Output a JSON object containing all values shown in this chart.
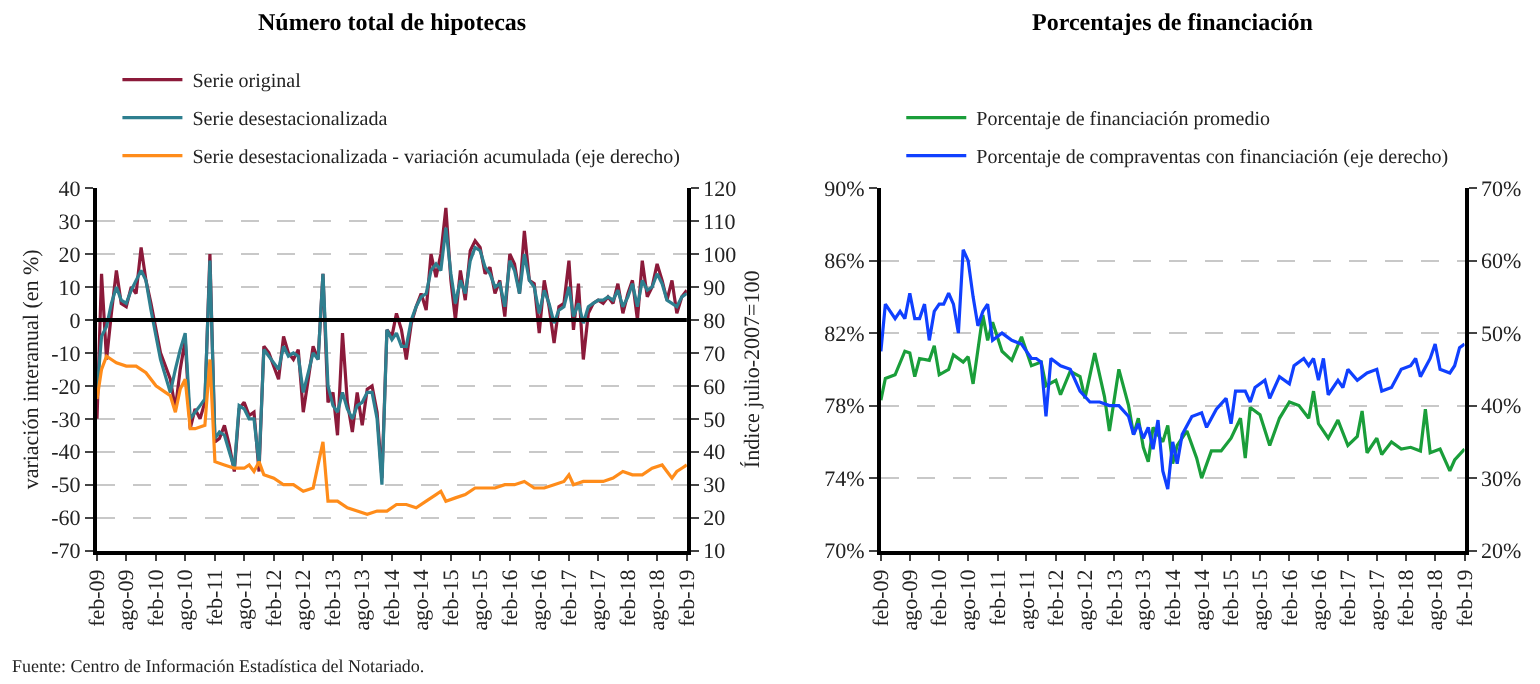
{
  "chart_data": [
    {
      "type": "line",
      "title": "Número total de hipotecas",
      "ylabel": "variación interanual (en %)",
      "y2label": "Índice julio-2007=100",
      "xlim": [
        "2009-02",
        "2019-02"
      ],
      "xticks": [
        {
          "value": "2009-02",
          "label": "feb-09"
        },
        {
          "value": "2009-08",
          "label": "ago-09"
        },
        {
          "value": "2010-02",
          "label": "feb-10"
        },
        {
          "value": "2010-08",
          "label": "ago-10"
        },
        {
          "value": "2011-02",
          "label": "feb-11"
        },
        {
          "value": "2011-08",
          "label": "ago-11"
        },
        {
          "value": "2012-02",
          "label": "feb-12"
        },
        {
          "value": "2012-08",
          "label": "ago-12"
        },
        {
          "value": "2013-02",
          "label": "feb-13"
        },
        {
          "value": "2013-08",
          "label": "ago-13"
        },
        {
          "value": "2014-02",
          "label": "feb-14"
        },
        {
          "value": "2014-08",
          "label": "ago-14"
        },
        {
          "value": "2015-02",
          "label": "feb-15"
        },
        {
          "value": "2015-08",
          "label": "ago-15"
        },
        {
          "value": "2016-02",
          "label": "feb-16"
        },
        {
          "value": "2016-08",
          "label": "ago-16"
        },
        {
          "value": "2017-02",
          "label": "feb-17"
        },
        {
          "value": "2017-08",
          "label": "ago-17"
        },
        {
          "value": "2018-02",
          "label": "feb-18"
        },
        {
          "value": "2018-08",
          "label": "ago-18"
        },
        {
          "value": "2019-02",
          "label": "feb-19"
        }
      ],
      "ylim": [
        -70,
        40
      ],
      "yticks": [
        -70,
        -60,
        -50,
        -40,
        -30,
        -20,
        -10,
        0,
        10,
        20,
        30,
        40
      ],
      "y2lim": [
        10,
        120
      ],
      "y2ticks": [
        10,
        20,
        30,
        40,
        50,
        60,
        70,
        80,
        90,
        100,
        110,
        120
      ],
      "grid": "y",
      "legend": "top",
      "line_style": "solid",
      "marker": "none",
      "ref_lines": [
        {
          "axis": "y",
          "value": 0,
          "color": "#000000"
        }
      ],
      "annotations": [
        "Fuente: Centro de Información Estadística del Notariado."
      ],
      "series": [
        {
          "name": "Serie original",
          "color": "#8b1a3a",
          "x": [
            "2009-02",
            "2009-03",
            "2009-04",
            "2009-05",
            "2009-06",
            "2009-07",
            "2009-08",
            "2009-09",
            "2009-10",
            "2009-11",
            "2009-12",
            "2010-01",
            "2010-03",
            "2010-05",
            "2010-06",
            "2010-07",
            "2010-08",
            "2010-09",
            "2010-10",
            "2010-11",
            "2010-12",
            "2011-01",
            "2011-02",
            "2011-03",
            "2011-04",
            "2011-05",
            "2011-06",
            "2011-07",
            "2011-08",
            "2011-09",
            "2011-10",
            "2011-11",
            "2011-12",
            "2012-01",
            "2012-03",
            "2012-04",
            "2012-05",
            "2012-06",
            "2012-07",
            "2012-08",
            "2012-09",
            "2012-10",
            "2012-11",
            "2012-12",
            "2013-01",
            "2013-02",
            "2013-03",
            "2013-04",
            "2013-05",
            "2013-06",
            "2013-07",
            "2013-08",
            "2013-09",
            "2013-10",
            "2013-11",
            "2013-12",
            "2014-01",
            "2014-02",
            "2014-03",
            "2014-04",
            "2014-05",
            "2014-06",
            "2014-07",
            "2014-08",
            "2014-09",
            "2014-10",
            "2014-11",
            "2014-12",
            "2015-01",
            "2015-02",
            "2015-03",
            "2015-04",
            "2015-05",
            "2015-06",
            "2015-07",
            "2015-08",
            "2015-09",
            "2015-10",
            "2015-11",
            "2015-12",
            "2016-01",
            "2016-02",
            "2016-03",
            "2016-04",
            "2016-05",
            "2016-06",
            "2016-07",
            "2016-08",
            "2016-09",
            "2016-10",
            "2016-11",
            "2016-12",
            "2017-01",
            "2017-02",
            "2017-03",
            "2017-04",
            "2017-05",
            "2017-06",
            "2017-07",
            "2017-08",
            "2017-09",
            "2017-10",
            "2017-11",
            "2017-12",
            "2018-01",
            "2018-02",
            "2018-03",
            "2018-04",
            "2018-05",
            "2018-06",
            "2018-07",
            "2018-08",
            "2018-09",
            "2018-10",
            "2018-11",
            "2018-12",
            "2019-01",
            "2019-02"
          ],
          "values": [
            -30,
            14,
            -12,
            2,
            15,
            5,
            4,
            10,
            8,
            22,
            12,
            5,
            -10,
            -18,
            -27,
            -15,
            -6,
            -33,
            -27,
            -30,
            -25,
            20,
            -37,
            -36,
            -32,
            -38,
            -46,
            -27,
            -25,
            -29,
            -28,
            -46,
            -8,
            -10,
            -18,
            -5,
            -10,
            -12,
            -9,
            -28,
            -18,
            -8,
            -12,
            14,
            -25,
            -22,
            -35,
            -4,
            -25,
            -34,
            -22,
            -32,
            -21,
            -20,
            -28,
            -48,
            -3,
            -5,
            2,
            -3,
            -12,
            -1,
            4,
            8,
            3,
            20,
            13,
            20,
            34,
            12,
            0,
            15,
            6,
            21,
            24,
            22,
            14,
            16,
            8,
            12,
            1,
            20,
            17,
            8,
            27,
            12,
            11,
            -4,
            12,
            4,
            -7,
            4,
            5,
            18,
            -3,
            11,
            -12,
            2,
            5,
            6,
            5,
            7,
            5,
            11,
            2,
            8,
            12,
            0,
            18,
            7,
            10,
            17,
            12,
            6,
            12,
            2,
            7,
            9
          ]
        },
        {
          "name": "Serie desestacionalizada",
          "color": "#2e7f8f",
          "x": [
            "2009-02",
            "2009-03",
            "2009-04",
            "2009-05",
            "2009-06",
            "2009-07",
            "2009-08",
            "2009-09",
            "2009-10",
            "2009-11",
            "2009-12",
            "2010-01",
            "2010-03",
            "2010-05",
            "2010-06",
            "2010-07",
            "2010-08",
            "2010-09",
            "2010-10",
            "2010-11",
            "2010-12",
            "2011-01",
            "2011-02",
            "2011-03",
            "2011-04",
            "2011-05",
            "2011-06",
            "2011-07",
            "2011-08",
            "2011-09",
            "2011-10",
            "2011-11",
            "2011-12",
            "2012-01",
            "2012-03",
            "2012-04",
            "2012-05",
            "2012-06",
            "2012-07",
            "2012-08",
            "2012-09",
            "2012-10",
            "2012-11",
            "2012-12",
            "2013-01",
            "2013-02",
            "2013-03",
            "2013-04",
            "2013-05",
            "2013-06",
            "2013-07",
            "2013-08",
            "2013-09",
            "2013-10",
            "2013-11",
            "2013-12",
            "2014-01",
            "2014-02",
            "2014-03",
            "2014-04",
            "2014-05",
            "2014-06",
            "2014-07",
            "2014-08",
            "2014-09",
            "2014-10",
            "2014-11",
            "2014-12",
            "2015-01",
            "2015-02",
            "2015-03",
            "2015-04",
            "2015-05",
            "2015-06",
            "2015-07",
            "2015-08",
            "2015-09",
            "2015-10",
            "2015-11",
            "2015-12",
            "2016-01",
            "2016-02",
            "2016-03",
            "2016-04",
            "2016-05",
            "2016-06",
            "2016-07",
            "2016-08",
            "2016-09",
            "2016-10",
            "2016-11",
            "2016-12",
            "2017-01",
            "2017-02",
            "2017-03",
            "2017-04",
            "2017-05",
            "2017-06",
            "2017-07",
            "2017-08",
            "2017-09",
            "2017-10",
            "2017-11",
            "2017-12",
            "2018-01",
            "2018-02",
            "2018-03",
            "2018-04",
            "2018-05",
            "2018-06",
            "2018-07",
            "2018-08",
            "2018-09",
            "2018-10",
            "2018-11",
            "2018-12",
            "2019-01",
            "2019-02"
          ],
          "values": [
            -22,
            -5,
            -2,
            5,
            10,
            6,
            5,
            9,
            12,
            15,
            12,
            3,
            -12,
            -22,
            -15,
            -9,
            -4,
            -30,
            -28,
            -26,
            -24,
            18,
            -36,
            -34,
            -35,
            -40,
            -45,
            -26,
            -27,
            -30,
            -30,
            -44,
            -9,
            -11,
            -15,
            -8,
            -11,
            -10,
            -11,
            -22,
            -16,
            -10,
            -12,
            14,
            -20,
            -26,
            -28,
            -22,
            -27,
            -30,
            -26,
            -25,
            -22,
            -22,
            -30,
            -50,
            -3,
            -6,
            -4,
            -8,
            -8,
            0,
            4,
            7,
            8,
            15,
            17,
            15,
            28,
            14,
            5,
            12,
            8,
            18,
            22,
            21,
            16,
            14,
            10,
            11,
            4,
            18,
            15,
            8,
            20,
            12,
            10,
            2,
            9,
            5,
            -1,
            3,
            4,
            10,
            1,
            5,
            -1,
            4,
            5,
            6,
            6,
            7,
            6,
            9,
            4,
            7,
            11,
            4,
            12,
            9,
            10,
            14,
            11,
            6,
            5,
            4,
            7,
            8
          ]
        },
        {
          "name": "Serie desestacionalizada - variación acumulada (eje derecho)",
          "color": "#ff8c1a",
          "axis": "y2",
          "x": [
            "2009-02",
            "2009-03",
            "2009-04",
            "2009-05",
            "2009-06",
            "2009-08",
            "2009-10",
            "2009-12",
            "2010-02",
            "2010-04",
            "2010-05",
            "2010-06",
            "2010-07",
            "2010-08",
            "2010-09",
            "2010-10",
            "2010-12",
            "2011-01",
            "2011-02",
            "2011-04",
            "2011-06",
            "2011-08",
            "2011-09",
            "2011-10",
            "2011-11",
            "2011-12",
            "2012-02",
            "2012-04",
            "2012-06",
            "2012-08",
            "2012-10",
            "2012-12",
            "2013-01",
            "2013-03",
            "2013-05",
            "2013-07",
            "2013-09",
            "2013-11",
            "2014-01",
            "2014-03",
            "2014-05",
            "2014-07",
            "2014-09",
            "2014-11",
            "2014-12",
            "2015-01",
            "2015-03",
            "2015-05",
            "2015-07",
            "2015-09",
            "2015-11",
            "2016-01",
            "2016-03",
            "2016-05",
            "2016-07",
            "2016-09",
            "2016-11",
            "2017-01",
            "2017-02",
            "2017-03",
            "2017-05",
            "2017-07",
            "2017-09",
            "2017-11",
            "2018-01",
            "2018-03",
            "2018-05",
            "2018-07",
            "2018-09",
            "2018-10",
            "2018-11",
            "2018-12",
            "2019-01",
            "2019-02"
          ],
          "values": [
            56,
            65,
            69,
            68,
            67,
            66,
            66,
            64,
            60,
            58,
            57,
            52,
            59,
            62,
            47,
            47,
            48,
            68,
            37,
            36,
            35,
            35,
            36,
            34,
            37,
            33,
            32,
            30,
            30,
            28,
            29,
            43,
            25,
            25,
            23,
            22,
            21,
            22,
            22,
            24,
            24,
            23,
            25,
            27,
            28,
            25,
            26,
            27,
            29,
            29,
            29,
            30,
            30,
            31,
            29,
            29,
            30,
            31,
            33,
            30,
            31,
            31,
            31,
            32,
            34,
            33,
            33,
            35,
            36,
            34,
            32,
            34,
            35,
            36
          ]
        }
      ]
    },
    {
      "type": "line",
      "title": "Porcentajes de financiación",
      "xlim": [
        "2009-02",
        "2019-02"
      ],
      "xticks": [
        {
          "value": "2009-02",
          "label": "feb-09"
        },
        {
          "value": "2009-08",
          "label": "ago-09"
        },
        {
          "value": "2010-02",
          "label": "feb-10"
        },
        {
          "value": "2010-08",
          "label": "ago-10"
        },
        {
          "value": "2011-02",
          "label": "feb-11"
        },
        {
          "value": "2011-08",
          "label": "ago-11"
        },
        {
          "value": "2012-02",
          "label": "feb-12"
        },
        {
          "value": "2012-08",
          "label": "ago-12"
        },
        {
          "value": "2013-02",
          "label": "feb-13"
        },
        {
          "value": "2013-08",
          "label": "ago-13"
        },
        {
          "value": "2014-02",
          "label": "feb-14"
        },
        {
          "value": "2014-08",
          "label": "ago-14"
        },
        {
          "value": "2015-02",
          "label": "feb-15"
        },
        {
          "value": "2015-08",
          "label": "ago-15"
        },
        {
          "value": "2016-02",
          "label": "feb-16"
        },
        {
          "value": "2016-08",
          "label": "ago-16"
        },
        {
          "value": "2017-02",
          "label": "feb-17"
        },
        {
          "value": "2017-08",
          "label": "ago-17"
        },
        {
          "value": "2018-02",
          "label": "feb-18"
        },
        {
          "value": "2018-08",
          "label": "ago-18"
        },
        {
          "value": "2019-02",
          "label": "feb-19"
        }
      ],
      "ylim": [
        70,
        90
      ],
      "yticks": [
        {
          "value": 70,
          "label": "70%"
        },
        {
          "value": 74,
          "label": "74%"
        },
        {
          "value": 78,
          "label": "78%"
        },
        {
          "value": 82,
          "label": "82%"
        },
        {
          "value": 86,
          "label": "86%"
        },
        {
          "value": 90,
          "label": "90%"
        }
      ],
      "y2lim": [
        20,
        70
      ],
      "y2ticks": [
        {
          "value": 20,
          "label": "20%"
        },
        {
          "value": 30,
          "label": "30%"
        },
        {
          "value": 40,
          "label": "40%"
        },
        {
          "value": 50,
          "label": "50%"
        },
        {
          "value": 60,
          "label": "60%"
        },
        {
          "value": 70,
          "label": "70%"
        }
      ],
      "grid": "y",
      "legend": "top",
      "line_style": "solid",
      "marker": "none",
      "series": [
        {
          "name": "Porcentaje de financiación promedio",
          "color": "#1a9e3a",
          "x": [
            "2009-02",
            "2009-03",
            "2009-05",
            "2009-07",
            "2009-08",
            "2009-09",
            "2009-10",
            "2009-12",
            "2010-01",
            "2010-02",
            "2010-04",
            "2010-05",
            "2010-07",
            "2010-08",
            "2010-09",
            "2010-11",
            "2010-12",
            "2011-01",
            "2011-03",
            "2011-05",
            "2011-07",
            "2011-09",
            "2011-11",
            "2011-12",
            "2012-02",
            "2012-03",
            "2012-05",
            "2012-07",
            "2012-08",
            "2012-10",
            "2012-12",
            "2013-01",
            "2013-03",
            "2013-05",
            "2013-06",
            "2013-07",
            "2013-08",
            "2013-09",
            "2013-10",
            "2013-12",
            "2014-01",
            "2014-02",
            "2014-03",
            "2014-05",
            "2014-07",
            "2014-08",
            "2014-10",
            "2014-12",
            "2015-02",
            "2015-04",
            "2015-05",
            "2015-06",
            "2015-08",
            "2015-10",
            "2015-12",
            "2016-02",
            "2016-04",
            "2016-06",
            "2016-07",
            "2016-08",
            "2016-10",
            "2016-12",
            "2017-02",
            "2017-04",
            "2017-05",
            "2017-06",
            "2017-08",
            "2017-09",
            "2017-11",
            "2018-01",
            "2018-03",
            "2018-05",
            "2018-06",
            "2018-07",
            "2018-09",
            "2018-11",
            "2018-12",
            "2019-02"
          ],
          "values": [
            78.3,
            79.5,
            79.7,
            81.0,
            80.9,
            79.6,
            80.6,
            80.5,
            81.3,
            79.7,
            80.0,
            80.8,
            80.4,
            80.7,
            79.2,
            83.0,
            81.6,
            82.6,
            81.0,
            80.5,
            81.8,
            80.2,
            80.4,
            79.1,
            79.4,
            78.6,
            79.9,
            79.6,
            78.4,
            80.9,
            78.5,
            76.6,
            80.0,
            78.0,
            76.4,
            77.3,
            75.7,
            74.9,
            76.8,
            76.0,
            76.9,
            74.8,
            75.8,
            76.6,
            75.1,
            74.0,
            75.5,
            75.5,
            76.2,
            77.3,
            75.1,
            77.9,
            77.5,
            75.8,
            77.3,
            78.2,
            78.0,
            77.3,
            78.8,
            77.0,
            76.2,
            77.2,
            75.8,
            76.3,
            77.7,
            75.4,
            76.2,
            75.3,
            76.0,
            75.6,
            75.7,
            75.5,
            77.8,
            75.4,
            75.6,
            74.4,
            75.0,
            75.6
          ]
        },
        {
          "name": "Porcentaje de compraventas con financiación (eje derecho)",
          "color": "#1040ff",
          "axis": "y2",
          "x": [
            "2009-02",
            "2009-03",
            "2009-05",
            "2009-06",
            "2009-07",
            "2009-08",
            "2009-09",
            "2009-10",
            "2009-11",
            "2009-12",
            "2010-01",
            "2010-02",
            "2010-03",
            "2010-04",
            "2010-05",
            "2010-06",
            "2010-07",
            "2010-08",
            "2010-09",
            "2010-10",
            "2010-11",
            "2010-12",
            "2011-01",
            "2011-03",
            "2011-05",
            "2011-07",
            "2011-09",
            "2011-10",
            "2011-11",
            "2011-12",
            "2012-01",
            "2012-03",
            "2012-05",
            "2012-07",
            "2012-09",
            "2012-11",
            "2013-01",
            "2013-03",
            "2013-05",
            "2013-06",
            "2013-07",
            "2013-08",
            "2013-09",
            "2013-10",
            "2013-11",
            "2013-12",
            "2014-01",
            "2014-02",
            "2014-03",
            "2014-04",
            "2014-06",
            "2014-08",
            "2014-09",
            "2014-11",
            "2015-01",
            "2015-02",
            "2015-03",
            "2015-05",
            "2015-06",
            "2015-07",
            "2015-09",
            "2015-10",
            "2015-12",
            "2016-02",
            "2016-03",
            "2016-05",
            "2016-06",
            "2016-07",
            "2016-08",
            "2016-09",
            "2016-10",
            "2016-12",
            "2017-01",
            "2017-02",
            "2017-04",
            "2017-06",
            "2017-08",
            "2017-09",
            "2017-11",
            "2018-01",
            "2018-03",
            "2018-04",
            "2018-05",
            "2018-07",
            "2018-08",
            "2018-09",
            "2018-11",
            "2018-12",
            "2019-01",
            "2019-02"
          ],
          "values": [
            47.5,
            54,
            52,
            53,
            52,
            55.5,
            52,
            52,
            54,
            49,
            53,
            54,
            54,
            55.5,
            54,
            50,
            61.5,
            60,
            55,
            51,
            53,
            54,
            49,
            50,
            49,
            48.5,
            46.5,
            46.5,
            46,
            38.5,
            46.5,
            45.5,
            45,
            42,
            40.5,
            40.5,
            40,
            40,
            38.5,
            36,
            37.5,
            35.5,
            37,
            34,
            38,
            31,
            28.5,
            35,
            32,
            36,
            38.5,
            39,
            37,
            39.5,
            41,
            37.5,
            42,
            42,
            40.5,
            42.5,
            43.5,
            41,
            44,
            43,
            45.5,
            46.5,
            45.5,
            46.5,
            43.5,
            46.5,
            41.5,
            43.5,
            42.5,
            45,
            43.5,
            44.5,
            45,
            42,
            42.5,
            45,
            45.5,
            46.5,
            44,
            46.5,
            48.5,
            45,
            44.5,
            45.5,
            48,
            48.5
          ]
        }
      ]
    }
  ]
}
